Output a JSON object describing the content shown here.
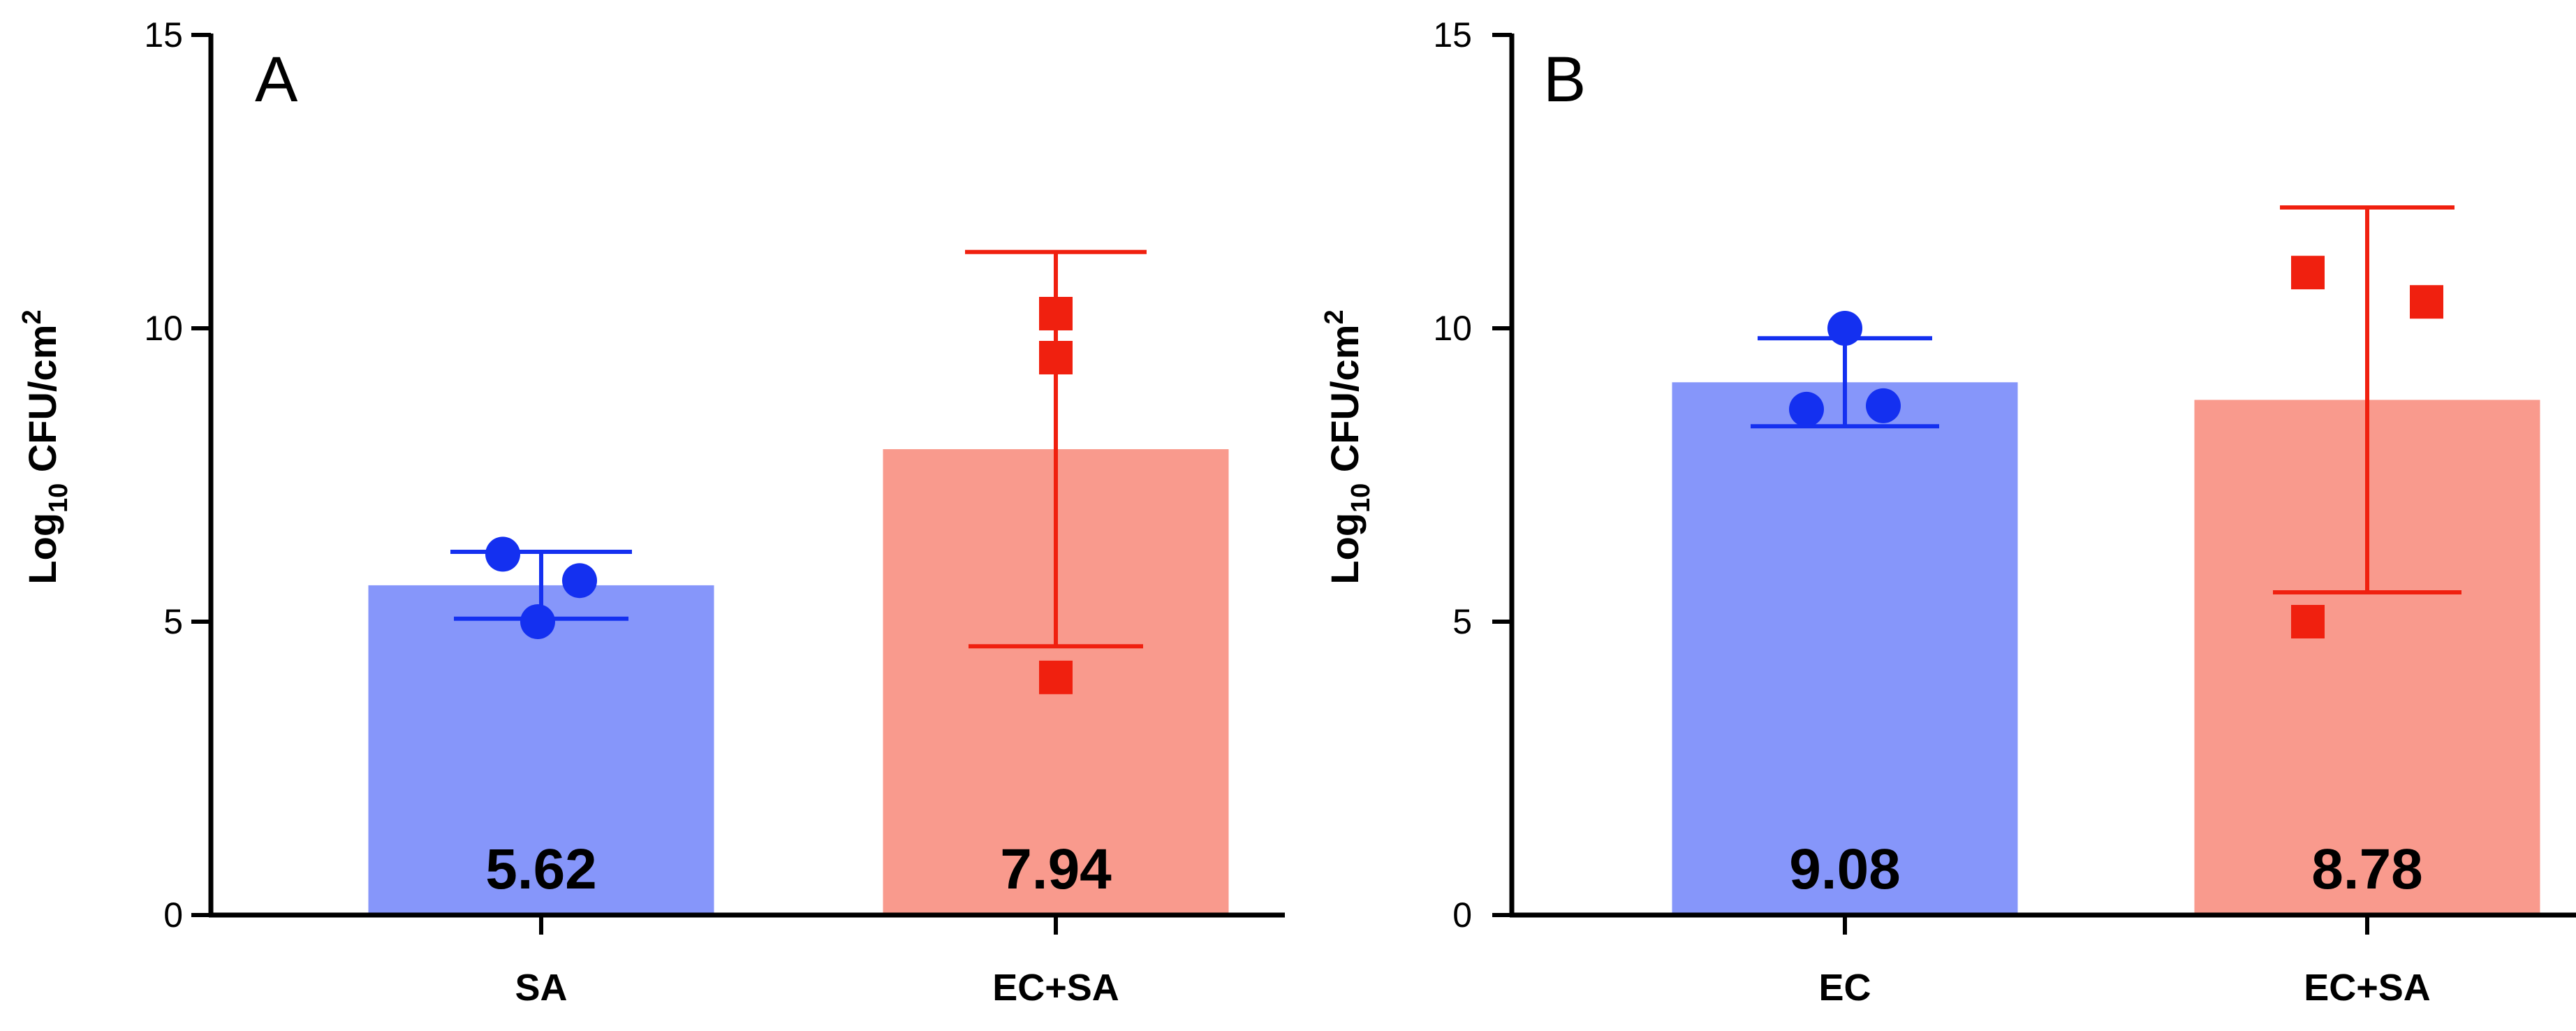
{
  "chart_data": [
    {
      "type": "bar",
      "panel_label": "A",
      "ylabel_main": "Log",
      "ylabel_sub": "10",
      "ylabel_rest": " CFU/cm",
      "ylabel_sup": "2",
      "ylim": [
        0,
        15
      ],
      "yticks": [
        0,
        5,
        10,
        15
      ],
      "categories": [
        "SA",
        "EC+SA"
      ],
      "values": [
        5.62,
        7.94
      ],
      "value_labels": [
        "5.62",
        "7.94"
      ],
      "error_low": [
        5.05,
        4.58
      ],
      "error_high": [
        6.19,
        11.3
      ],
      "points": [
        [
          6.15,
          5.0,
          5.7
        ],
        [
          10.25,
          9.5,
          4.05
        ]
      ],
      "markers": [
        "circle",
        "square"
      ],
      "bar_colors": [
        "#8696fa",
        "#f99a8d"
      ],
      "marker_colors": [
        "#1430f0",
        "#f0200f"
      ]
    },
    {
      "type": "bar",
      "panel_label": "B",
      "ylabel_main": "Log",
      "ylabel_sub": "10",
      "ylabel_rest": " CFU/cm",
      "ylabel_sup": "2",
      "ylim": [
        0,
        15
      ],
      "yticks": [
        0,
        5,
        10,
        15
      ],
      "categories": [
        "EC",
        "EC+SA"
      ],
      "values": [
        9.08,
        8.78
      ],
      "value_labels": [
        "9.08",
        "8.78"
      ],
      "error_low": [
        8.33,
        5.5
      ],
      "error_high": [
        9.83,
        12.06
      ],
      "points": [
        [
          10.0,
          8.62,
          8.68
        ],
        [
          10.95,
          5.0,
          10.45
        ]
      ],
      "markers": [
        "circle",
        "square"
      ],
      "bar_colors": [
        "#8696fa",
        "#f99a8d"
      ],
      "marker_colors": [
        "#1430f0",
        "#f0200f"
      ]
    }
  ]
}
